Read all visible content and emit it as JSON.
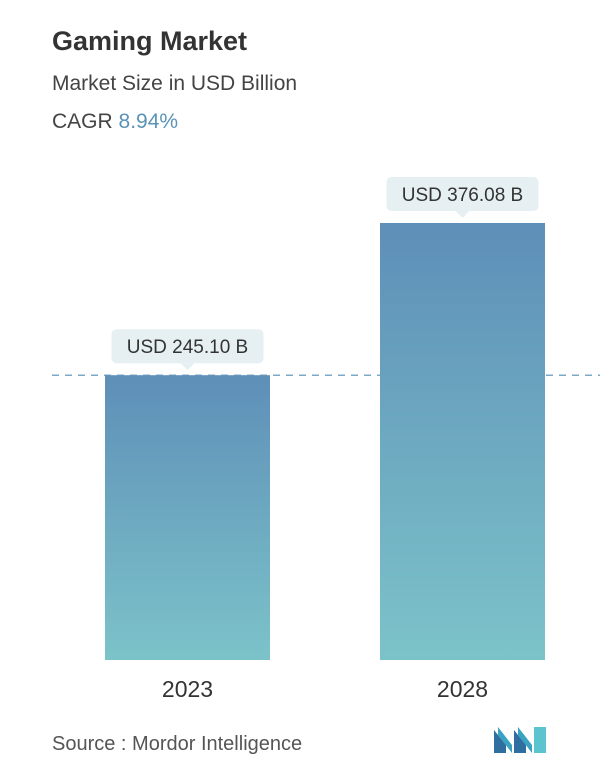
{
  "header": {
    "title": "Gaming Market",
    "subtitle": "Market Size in USD Billion",
    "cagr_label": "CAGR",
    "cagr_value": "8.94%"
  },
  "footer": {
    "source": "Source :  Mordor Intelligence",
    "logo_icon": "mordor-intelligence-logo-icon"
  },
  "colors": {
    "bar_top": "#5e8fb8",
    "bar_bottom": "#7cc3c9",
    "cagr_accent": "#5b93b8",
    "label_bg": "#e6eff2",
    "dashed_line": "#7ea9c4"
  },
  "chart_data": {
    "type": "bar",
    "title": "Gaming Market",
    "subtitle": "Market Size in USD Billion",
    "categories": [
      "2023",
      "2028"
    ],
    "values": [
      245.1,
      376.08
    ],
    "value_labels": [
      "USD 245.10 B",
      "USD 376.08 B"
    ],
    "reference_line": 245.1,
    "ylim": [
      0,
      376.08
    ],
    "grid": false,
    "legend": "none"
  }
}
